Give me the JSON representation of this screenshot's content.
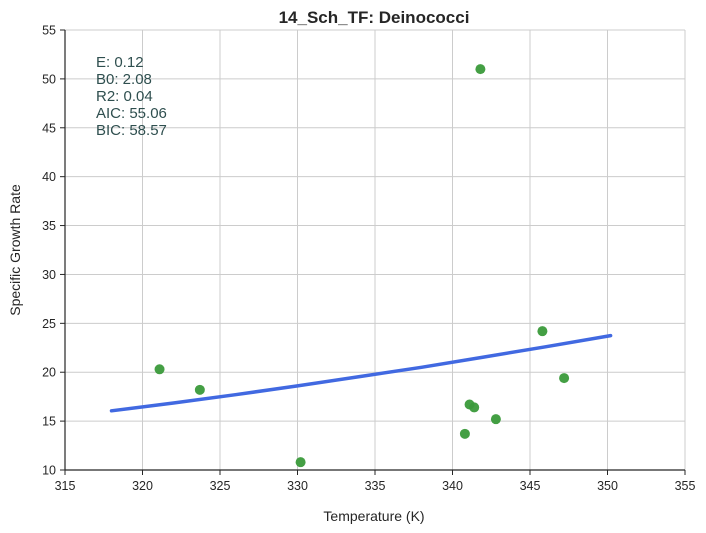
{
  "chart_data": {
    "type": "scatter",
    "title": "14_Sch_TF: Deinococci",
    "xlabel": "Temperature (K)",
    "ylabel": "Specific Growth Rate",
    "xlim": [
      315,
      355
    ],
    "ylim": [
      10,
      55
    ],
    "xticks": [
      315,
      320,
      325,
      330,
      335,
      340,
      345,
      350,
      355
    ],
    "yticks": [
      10,
      15,
      20,
      25,
      30,
      35,
      40,
      45,
      50,
      55
    ],
    "grid": true,
    "series": [
      {
        "type": "scatter",
        "color": "#3a9a3a",
        "points": [
          {
            "x": 321.1,
            "y": 20.3
          },
          {
            "x": 323.7,
            "y": 18.2
          },
          {
            "x": 330.2,
            "y": 10.8
          },
          {
            "x": 340.8,
            "y": 13.7
          },
          {
            "x": 341.1,
            "y": 16.7
          },
          {
            "x": 341.4,
            "y": 16.4
          },
          {
            "x": 341.8,
            "y": 51.0
          },
          {
            "x": 342.8,
            "y": 15.2
          },
          {
            "x": 345.8,
            "y": 24.2
          },
          {
            "x": 347.2,
            "y": 19.4
          }
        ]
      },
      {
        "type": "line",
        "color": "#4169e1",
        "points": [
          {
            "x": 318.0,
            "y": 16.05
          },
          {
            "x": 322.0,
            "y": 16.85
          },
          {
            "x": 326.0,
            "y": 17.7
          },
          {
            "x": 330.0,
            "y": 18.6
          },
          {
            "x": 334.0,
            "y": 19.55
          },
          {
            "x": 338.0,
            "y": 20.5
          },
          {
            "x": 342.0,
            "y": 21.55
          },
          {
            "x": 346.0,
            "y": 22.6
          },
          {
            "x": 350.2,
            "y": 23.75
          }
        ]
      }
    ],
    "annotations": [
      "E:  0.12",
      "B0:  2.08",
      "R2:  0.04",
      "AIC: 55.06",
      "BIC: 58.57"
    ]
  }
}
